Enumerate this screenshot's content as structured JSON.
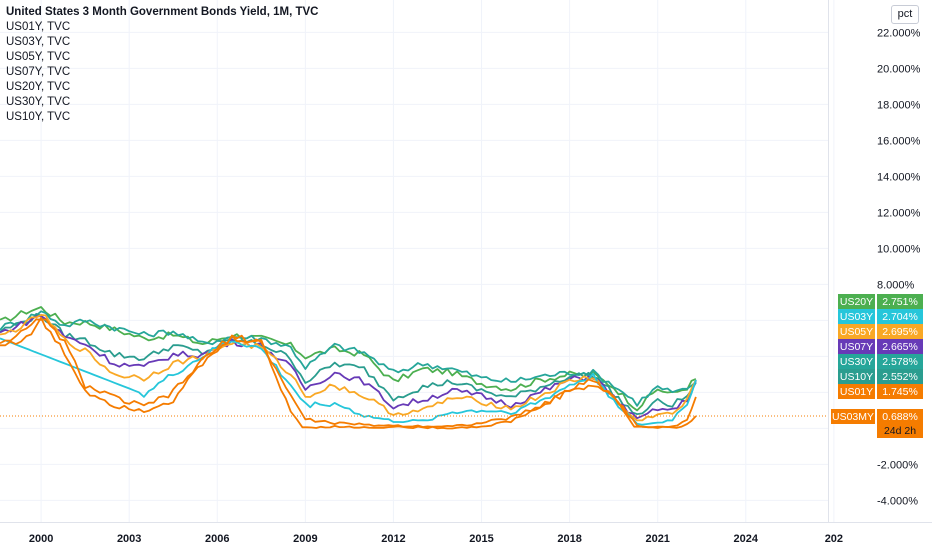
{
  "legend": {
    "title": "United States 3 Month Government Bonds Yield, 1M, TVC",
    "items": [
      "US01Y, TVC",
      "US03Y, TVC",
      "US05Y, TVC",
      "US07Y, TVC",
      "US20Y, TVC",
      "US30Y, TVC",
      "US10Y, TVC"
    ]
  },
  "scale_button": "pct",
  "chart_data": {
    "type": "line",
    "title": "United States 3 Month Government Bonds Yield, 1M, TVC",
    "y_unit": "%",
    "ylim": [
      -5.2,
      23.8
    ],
    "xlim": [
      1998.6,
      2026.8
    ],
    "y_ticks": [
      "22.000%",
      "20.000%",
      "18.000%",
      "16.000%",
      "14.000%",
      "12.000%",
      "10.000%",
      "8.000%",
      "-2.000%",
      "-4.000%"
    ],
    "x_ticks": [
      "2000",
      "2003",
      "2006",
      "2009",
      "2012",
      "2015",
      "2018",
      "2021",
      "2024",
      "202"
    ],
    "grid": true,
    "series": [
      {
        "name": "US20Y",
        "color": "#4caf50",
        "last": "2.751%",
        "points": [
          [
            1998.6,
            5.9
          ],
          [
            1999.5,
            6.5
          ],
          [
            2000,
            6.7
          ],
          [
            2000.8,
            5.9
          ],
          [
            2001.5,
            5.9
          ],
          [
            2002.5,
            5.5
          ],
          [
            2003.5,
            5.0
          ],
          [
            2004.5,
            5.2
          ],
          [
            2005.5,
            4.7
          ],
          [
            2006.5,
            5.2
          ],
          [
            2007.5,
            5.0
          ],
          [
            2008.5,
            4.6
          ],
          [
            2009,
            4.0
          ],
          [
            2010,
            4.4
          ],
          [
            2011,
            4.1
          ],
          [
            2012,
            2.6
          ],
          [
            2013,
            3.3
          ],
          [
            2014,
            3.1
          ],
          [
            2015,
            2.5
          ],
          [
            2016,
            2.2
          ],
          [
            2017,
            2.7
          ],
          [
            2018,
            3.0
          ],
          [
            2018.8,
            3.0
          ],
          [
            2019.5,
            2.3
          ],
          [
            2020.3,
            1.1
          ],
          [
            2021,
            2.2
          ],
          [
            2021.5,
            1.9
          ],
          [
            2022,
            2.3
          ],
          [
            2022.3,
            2.75
          ]
        ]
      },
      {
        "name": "US30Y",
        "color": "#26a69a",
        "last": "2.578%",
        "points": [
          [
            1998.6,
            5.6
          ],
          [
            1999.5,
            6.1
          ],
          [
            2000,
            6.5
          ],
          [
            2000.8,
            5.7
          ],
          [
            2001.5,
            6.0
          ],
          [
            2002.5,
            5.6
          ],
          [
            2003.5,
            5.2
          ],
          [
            2004.5,
            5.4
          ],
          [
            2005.5,
            4.7
          ],
          [
            2006.5,
            5.1
          ],
          [
            2007.5,
            5.0
          ],
          [
            2008.5,
            4.5
          ],
          [
            2009,
            3.4
          ],
          [
            2010,
            4.6
          ],
          [
            2011,
            4.2
          ],
          [
            2012,
            3.1
          ],
          [
            2013,
            3.6
          ],
          [
            2014,
            3.3
          ],
          [
            2015,
            2.8
          ],
          [
            2016,
            2.6
          ],
          [
            2017,
            2.9
          ],
          [
            2018,
            3.1
          ],
          [
            2018.8,
            3.1
          ],
          [
            2019.5,
            2.4
          ],
          [
            2020.3,
            1.4
          ],
          [
            2021,
            2.3
          ],
          [
            2021.5,
            2.0
          ],
          [
            2022,
            2.1
          ],
          [
            2022.3,
            2.58
          ]
        ]
      },
      {
        "name": "US10Y",
        "color": "#2a9d8f",
        "last": "2.552%",
        "points": [
          [
            1998.6,
            5.4
          ],
          [
            1999.5,
            6.0
          ],
          [
            2000,
            6.3
          ],
          [
            2000.8,
            5.2
          ],
          [
            2001.5,
            4.9
          ],
          [
            2002.5,
            4.1
          ],
          [
            2003.5,
            3.9
          ],
          [
            2004.5,
            4.6
          ],
          [
            2005.5,
            4.2
          ],
          [
            2006.5,
            4.9
          ],
          [
            2007.5,
            4.7
          ],
          [
            2008.5,
            3.9
          ],
          [
            2009,
            2.6
          ],
          [
            2010,
            3.6
          ],
          [
            2011,
            3.3
          ],
          [
            2012,
            1.7
          ],
          [
            2013,
            2.3
          ],
          [
            2014,
            2.6
          ],
          [
            2015,
            2.1
          ],
          [
            2016,
            1.7
          ],
          [
            2017,
            2.3
          ],
          [
            2018,
            2.9
          ],
          [
            2018.8,
            3.0
          ],
          [
            2019.5,
            1.9
          ],
          [
            2020.3,
            0.7
          ],
          [
            2021,
            1.5
          ],
          [
            2021.5,
            1.3
          ],
          [
            2022,
            1.8
          ],
          [
            2022.3,
            2.55
          ]
        ]
      },
      {
        "name": "US07Y",
        "color": "#673ab7",
        "last": "2.665%",
        "points": [
          [
            1998.6,
            5.3
          ],
          [
            1999.5,
            5.9
          ],
          [
            2000,
            6.3
          ],
          [
            2000.8,
            5.1
          ],
          [
            2001.5,
            4.7
          ],
          [
            2002.5,
            3.6
          ],
          [
            2003.5,
            3.4
          ],
          [
            2004.5,
            4.1
          ],
          [
            2005.5,
            4.1
          ],
          [
            2006.5,
            4.8
          ],
          [
            2007.5,
            4.6
          ],
          [
            2008.5,
            3.4
          ],
          [
            2009,
            2.2
          ],
          [
            2010,
            3.1
          ],
          [
            2011,
            2.6
          ],
          [
            2012,
            1.2
          ],
          [
            2013,
            1.6
          ],
          [
            2014,
            2.1
          ],
          [
            2015,
            1.8
          ],
          [
            2016,
            1.3
          ],
          [
            2017,
            2.0
          ],
          [
            2018,
            2.7
          ],
          [
            2018.8,
            2.9
          ],
          [
            2019.5,
            1.7
          ],
          [
            2020.3,
            0.5
          ],
          [
            2021,
            1.1
          ],
          [
            2021.5,
            1.0
          ],
          [
            2022,
            1.6
          ],
          [
            2022.3,
            2.66
          ]
        ]
      },
      {
        "name": "US05Y",
        "color": "#f9a825",
        "last": "2.695%",
        "points": [
          [
            1998.6,
            5.1
          ],
          [
            1999.5,
            5.8
          ],
          [
            2000,
            6.4
          ],
          [
            2000.8,
            4.9
          ],
          [
            2001.5,
            4.3
          ],
          [
            2002.5,
            3.0
          ],
          [
            2003.5,
            2.8
          ],
          [
            2004.5,
            3.6
          ],
          [
            2005.5,
            4.0
          ],
          [
            2006.5,
            4.8
          ],
          [
            2007.5,
            4.5
          ],
          [
            2008.5,
            3.0
          ],
          [
            2009,
            1.8
          ],
          [
            2010,
            2.4
          ],
          [
            2011,
            1.8
          ],
          [
            2012,
            0.8
          ],
          [
            2013,
            1.0
          ],
          [
            2014,
            1.7
          ],
          [
            2015,
            1.5
          ],
          [
            2016,
            1.1
          ],
          [
            2017,
            1.8
          ],
          [
            2018,
            2.6
          ],
          [
            2018.8,
            2.9
          ],
          [
            2019.5,
            1.6
          ],
          [
            2020.3,
            0.4
          ],
          [
            2021,
            0.8
          ],
          [
            2021.5,
            0.8
          ],
          [
            2022,
            1.5
          ],
          [
            2022.3,
            2.7
          ]
        ]
      },
      {
        "name": "US03Y",
        "color": "#26c6da",
        "last": "2.704%",
        "points": [
          [
            1998.6,
            5.0
          ],
          [
            2003.5,
            1.9
          ],
          [
            2004.5,
            3.0
          ],
          [
            2005.5,
            4.0
          ],
          [
            2006.5,
            4.9
          ],
          [
            2007.5,
            4.4
          ],
          [
            2008.5,
            2.4
          ],
          [
            2009,
            1.3
          ],
          [
            2010,
            1.4
          ],
          [
            2011,
            0.7
          ],
          [
            2012,
            0.4
          ],
          [
            2013,
            0.4
          ],
          [
            2014,
            0.9
          ],
          [
            2015,
            1.0
          ],
          [
            2016,
            0.9
          ],
          [
            2017,
            1.5
          ],
          [
            2018,
            2.4
          ],
          [
            2018.8,
            2.9
          ],
          [
            2019.5,
            1.6
          ],
          [
            2020.3,
            0.2
          ],
          [
            2021,
            0.3
          ],
          [
            2021.5,
            0.5
          ],
          [
            2022,
            1.4
          ],
          [
            2022.3,
            2.7
          ]
        ]
      },
      {
        "name": "US01Y",
        "color": "#f57c00",
        "last": "1.745%",
        "points": [
          [
            1998.6,
            4.8
          ],
          [
            1999.5,
            5.4
          ],
          [
            2000,
            6.2
          ],
          [
            2000.8,
            4.8
          ],
          [
            2001.5,
            2.4
          ],
          [
            2002.5,
            1.7
          ],
          [
            2003.5,
            1.2
          ],
          [
            2004.5,
            2.0
          ],
          [
            2005.5,
            3.8
          ],
          [
            2006.5,
            5.1
          ],
          [
            2007.5,
            4.8
          ],
          [
            2008.5,
            1.8
          ],
          [
            2009,
            0.5
          ],
          [
            2010,
            0.3
          ],
          [
            2011,
            0.2
          ],
          [
            2012,
            0.15
          ],
          [
            2013,
            0.13
          ],
          [
            2014,
            0.12
          ],
          [
            2015,
            0.3
          ],
          [
            2016,
            0.6
          ],
          [
            2017,
            1.2
          ],
          [
            2018,
            2.2
          ],
          [
            2018.8,
            2.7
          ],
          [
            2019.5,
            1.8
          ],
          [
            2020.3,
            0.15
          ],
          [
            2021,
            0.06
          ],
          [
            2021.5,
            0.08
          ],
          [
            2022,
            0.5
          ],
          [
            2022.3,
            1.75
          ]
        ]
      },
      {
        "name": "US03MY",
        "color": "#f57c00",
        "last": "0.688%",
        "countdown": "24d 2h",
        "points": [
          [
            1998.6,
            4.6
          ],
          [
            1999.5,
            5.0
          ],
          [
            2000,
            6.0
          ],
          [
            2000.8,
            4.2
          ],
          [
            2001.5,
            2.1
          ],
          [
            2002.5,
            1.3
          ],
          [
            2003.5,
            1.0
          ],
          [
            2004.5,
            1.6
          ],
          [
            2005.5,
            3.6
          ],
          [
            2006.5,
            5.0
          ],
          [
            2007.5,
            4.8
          ],
          [
            2008.5,
            1.0
          ],
          [
            2008.9,
            0.05
          ],
          [
            2010,
            0.1
          ],
          [
            2011,
            0.05
          ],
          [
            2012,
            0.08
          ],
          [
            2013,
            0.05
          ],
          [
            2014,
            0.03
          ],
          [
            2015,
            0.1
          ],
          [
            2016,
            0.4
          ],
          [
            2017,
            1.2
          ],
          [
            2018,
            2.1
          ],
          [
            2018.8,
            2.4
          ],
          [
            2019.5,
            1.8
          ],
          [
            2020.2,
            0.1
          ],
          [
            2021,
            0.05
          ],
          [
            2021.8,
            0.05
          ],
          [
            2022,
            0.3
          ],
          [
            2022.3,
            0.69
          ]
        ]
      }
    ]
  }
}
